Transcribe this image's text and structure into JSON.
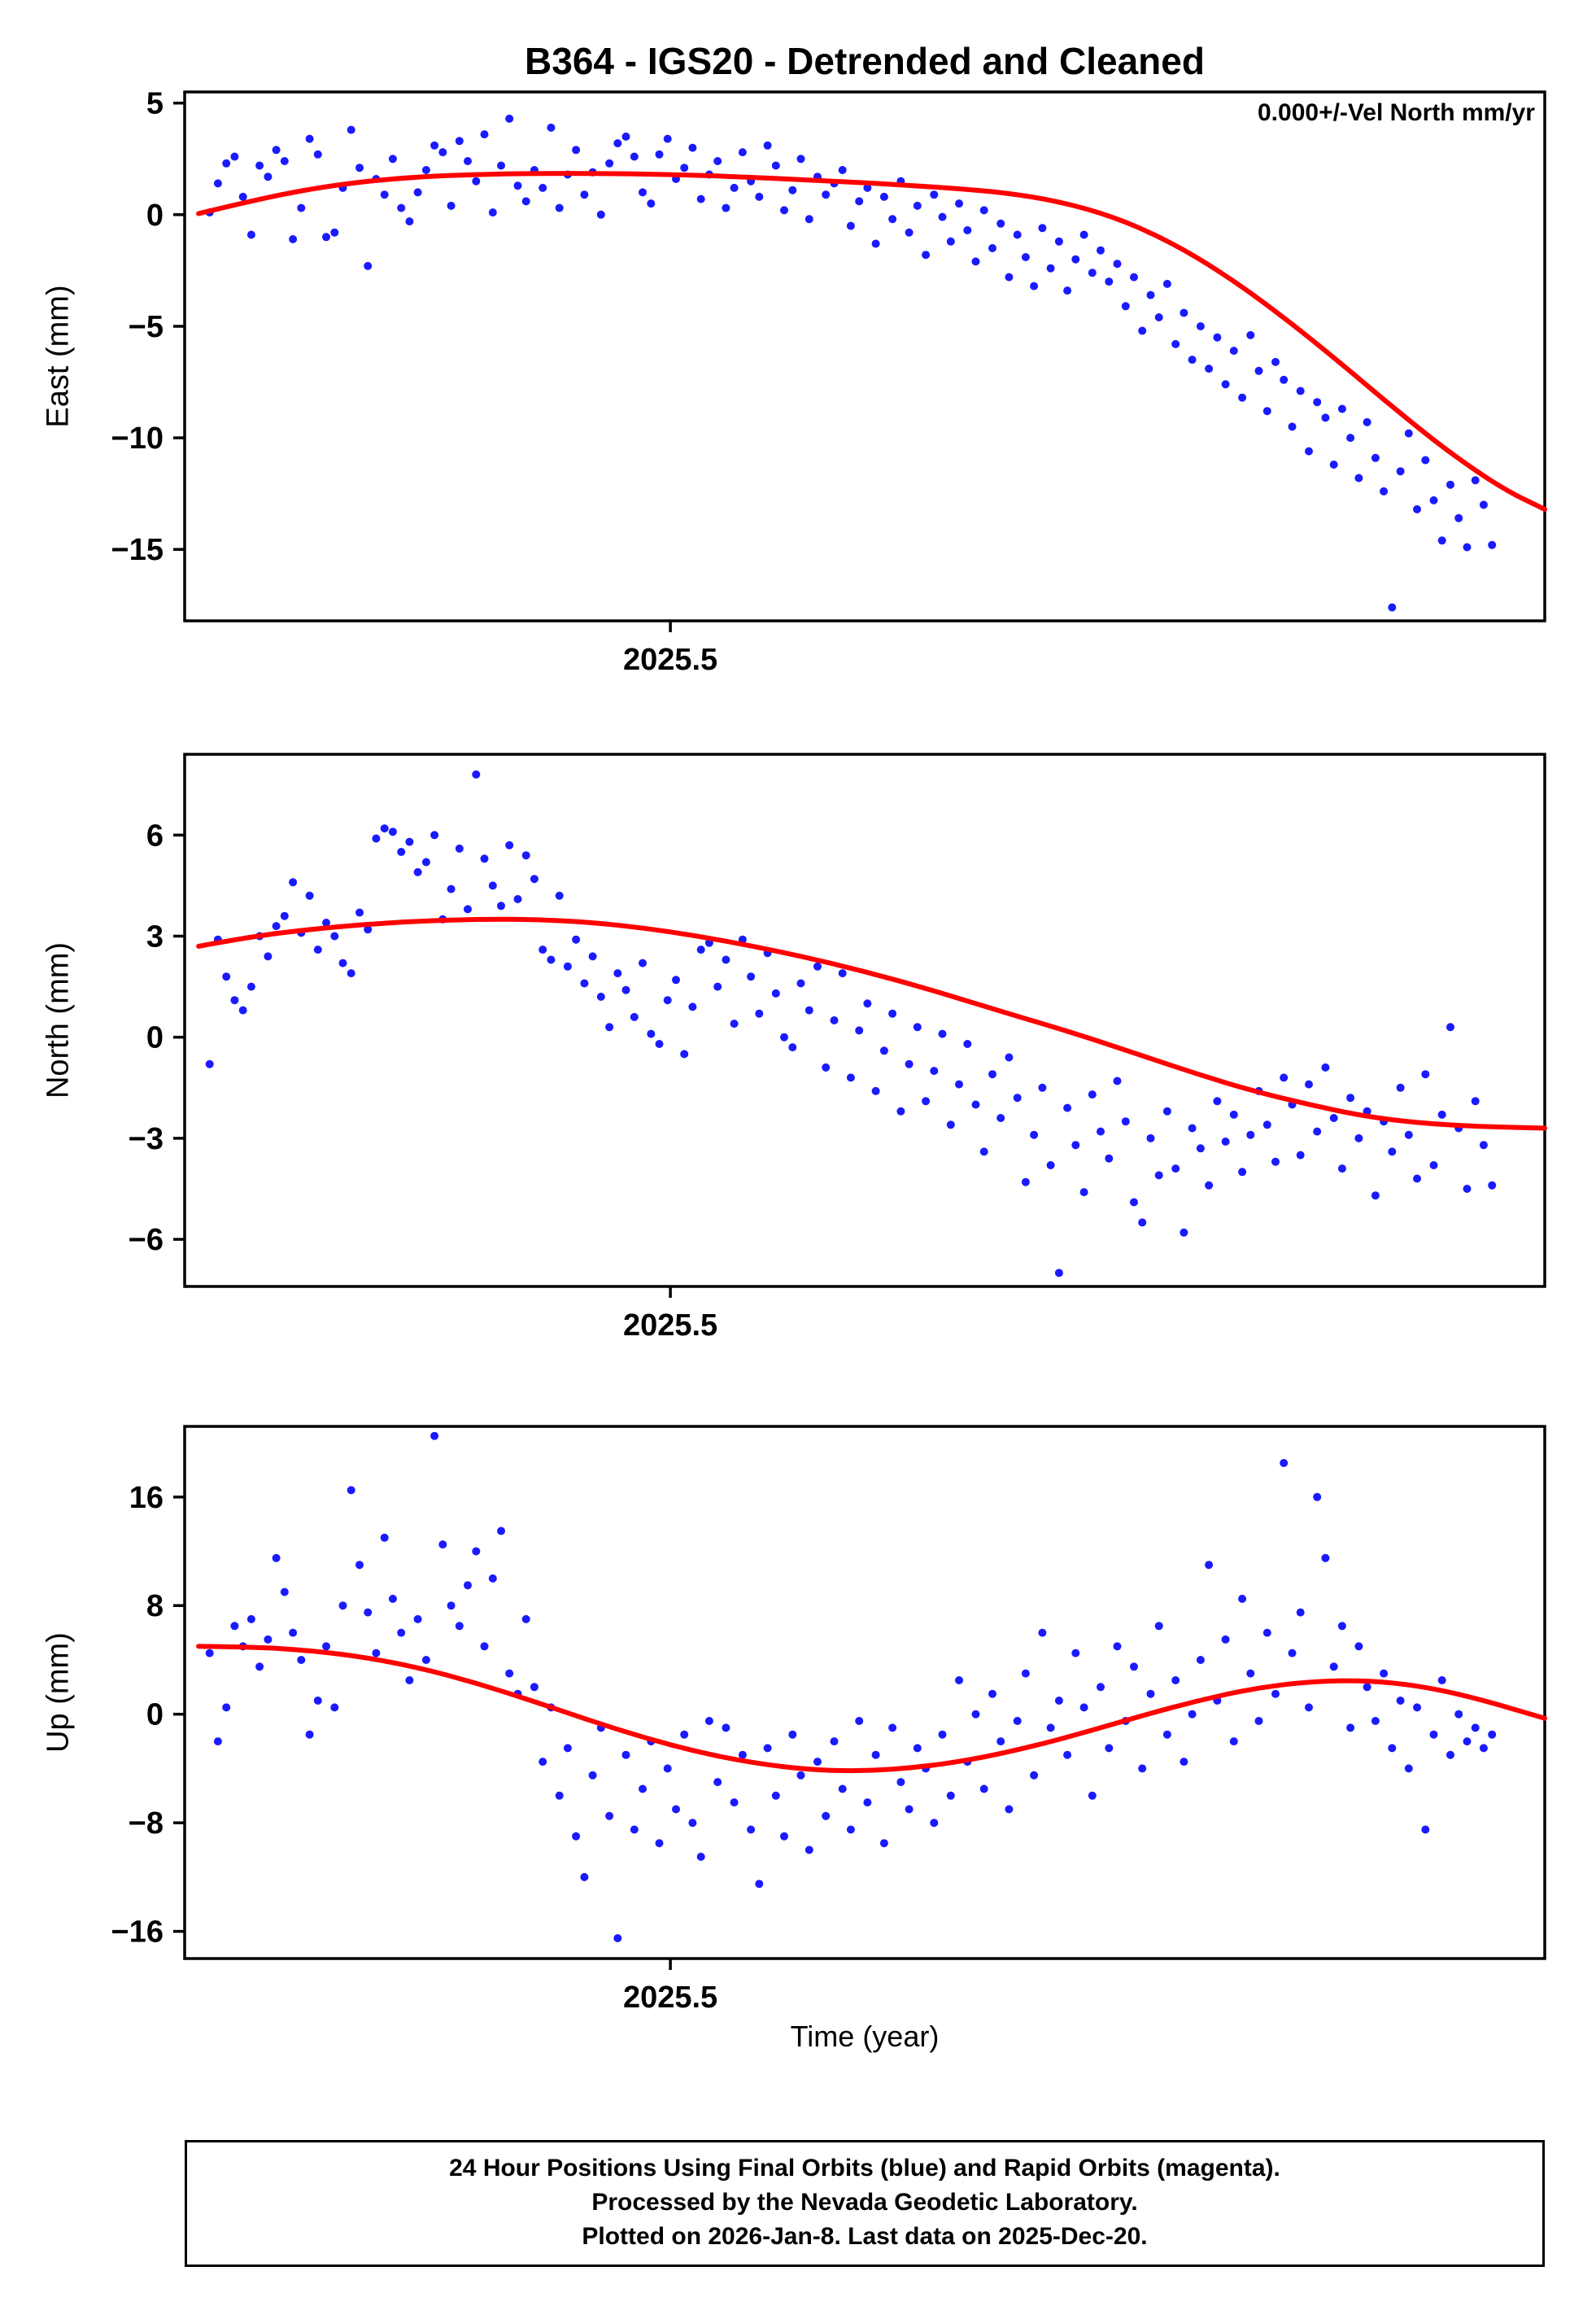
{
  "title": "B364 - IGS20 - Detrended and Cleaned",
  "annotation": "0.000+/-Vel North mm/yr",
  "xlabel": "Time (year)",
  "footer": {
    "line1": "24 Hour Positions Using Final Orbits (blue) and Rapid Orbits (magenta).",
    "line2": "Processed by the Nevada Geodetic Laboratory.",
    "line3": "Plotted on 2026-Jan-8. Last data on 2025-Dec-20."
  },
  "colors": {
    "points": "#1a1aff",
    "trend": "#ff0000",
    "frame": "#000000"
  },
  "chart_data": [
    {
      "type": "scatter",
      "ylabel": "East (mm)",
      "xlabel": "Time (year)",
      "ylim": [
        -18.2,
        5.5
      ],
      "xlim": [
        2025.15,
        2026.13
      ],
      "y_ticks": [
        5,
        0,
        -5,
        -10,
        -15
      ],
      "x_ticks": [
        {
          "value": 2025.5,
          "label": "2025.5"
        }
      ],
      "series": [
        {
          "name": "daily-position-final-orbits",
          "style": "points",
          "x_start": 2025.168,
          "x_step": 0.006,
          "y": [
            0.1,
            1.4,
            2.3,
            2.6,
            0.8,
            -0.9,
            2.2,
            1.7,
            2.9,
            2.4,
            -1.1,
            0.3,
            3.4,
            2.7,
            -1.0,
            -0.8,
            1.2,
            3.8,
            2.1,
            -2.3,
            1.6,
            0.9,
            2.5,
            0.3,
            -0.3,
            1.0,
            2.0,
            3.1,
            2.8,
            0.4,
            3.3,
            2.4,
            1.5,
            3.6,
            0.1,
            2.2,
            4.3,
            1.3,
            0.6,
            2.0,
            1.2,
            3.9,
            0.3,
            1.8,
            2.9,
            0.9,
            1.9,
            0.0,
            2.3,
            3.2,
            3.5,
            2.6,
            1.0,
            0.5,
            2.7,
            3.4,
            1.6,
            2.1,
            3.0,
            0.7,
            1.8,
            2.4,
            0.3,
            1.2,
            2.8,
            1.5,
            0.8,
            3.1,
            2.2,
            0.2,
            1.1,
            2.5,
            -0.2,
            1.7,
            0.9,
            1.4,
            2.0,
            -0.5,
            0.6,
            1.2,
            -1.3,
            0.8,
            -0.2,
            1.5,
            -0.8,
            0.4,
            -1.8,
            0.9,
            -0.1,
            -1.2,
            0.5,
            -0.7,
            -2.1,
            0.2,
            -1.5,
            -0.4,
            -2.8,
            -0.9,
            -1.9,
            -3.2,
            -0.6,
            -2.4,
            -1.2,
            -3.4,
            -2.0,
            -0.9,
            -2.6,
            -1.6,
            -3.0,
            -2.2,
            -4.1,
            -2.8,
            -5.2,
            -3.6,
            -4.6,
            -3.1,
            -5.8,
            -4.4,
            -6.5,
            -5.0,
            -6.9,
            -5.5,
            -7.6,
            -6.1,
            -8.2,
            -5.4,
            -7.0,
            -8.8,
            -6.6,
            -7.4,
            -9.5,
            -7.9,
            -10.6,
            -8.4,
            -9.1,
            -11.2,
            -8.7,
            -10.0,
            -11.8,
            -9.3,
            -10.9,
            -12.4,
            -17.6,
            -11.5,
            -9.8,
            -13.2,
            -11.0,
            -12.8,
            -14.6,
            -12.1,
            -13.6,
            -14.9,
            -11.9,
            -13.0,
            -14.8
          ]
        },
        {
          "name": "model-fit",
          "style": "line",
          "points": [
            [
              2025.16,
              0.05
            ],
            [
              2025.2,
              0.65
            ],
            [
              2025.24,
              1.15
            ],
            [
              2025.28,
              1.5
            ],
            [
              2025.32,
              1.7
            ],
            [
              2025.36,
              1.8
            ],
            [
              2025.4,
              1.85
            ],
            [
              2025.45,
              1.85
            ],
            [
              2025.5,
              1.8
            ],
            [
              2025.55,
              1.7
            ],
            [
              2025.6,
              1.55
            ],
            [
              2025.65,
              1.4
            ],
            [
              2025.7,
              1.2
            ],
            [
              2025.74,
              1.0
            ],
            [
              2025.78,
              0.6
            ],
            [
              2025.82,
              -0.1
            ],
            [
              2025.86,
              -1.2
            ],
            [
              2025.9,
              -2.7
            ],
            [
              2025.94,
              -4.5
            ],
            [
              2025.98,
              -6.5
            ],
            [
              2026.02,
              -8.6
            ],
            [
              2026.06,
              -10.6
            ],
            [
              2026.1,
              -12.3
            ],
            [
              2026.13,
              -13.2
            ]
          ]
        }
      ]
    },
    {
      "type": "scatter",
      "ylabel": "North (mm)",
      "xlabel": "Time (year)",
      "ylim": [
        -7.4,
        8.4
      ],
      "xlim": [
        2025.15,
        2026.13
      ],
      "y_ticks": [
        6,
        3,
        0,
        -3,
        -6
      ],
      "x_ticks": [
        {
          "value": 2025.5,
          "label": "2025.5"
        }
      ],
      "series": [
        {
          "name": "daily-position-final-orbits",
          "style": "points",
          "x_start": 2025.168,
          "x_step": 0.006,
          "y": [
            -0.8,
            2.9,
            1.8,
            1.1,
            0.8,
            1.5,
            3.0,
            2.4,
            3.3,
            3.6,
            4.6,
            3.1,
            4.2,
            2.6,
            3.4,
            3.0,
            2.2,
            1.9,
            3.7,
            3.2,
            5.9,
            6.2,
            6.1,
            5.5,
            5.8,
            4.9,
            5.2,
            6.0,
            3.5,
            4.4,
            5.6,
            3.8,
            7.8,
            5.3,
            4.5,
            3.9,
            5.7,
            4.1,
            5.4,
            4.7,
            2.6,
            2.3,
            4.2,
            2.1,
            2.9,
            1.6,
            2.4,
            1.2,
            0.3,
            1.9,
            1.4,
            0.6,
            2.2,
            0.1,
            -0.2,
            1.1,
            1.7,
            -0.5,
            0.9,
            2.6,
            2.8,
            1.5,
            2.3,
            0.4,
            2.9,
            1.8,
            0.7,
            2.5,
            1.3,
            0.0,
            -0.3,
            1.6,
            0.8,
            2.1,
            -0.9,
            0.5,
            1.9,
            -1.2,
            0.2,
            1.0,
            -1.6,
            -0.4,
            0.7,
            -2.2,
            -0.8,
            0.3,
            -1.9,
            -1.0,
            0.1,
            -2.6,
            -1.4,
            -0.2,
            -2.0,
            -3.4,
            -1.1,
            -2.4,
            -0.6,
            -1.8,
            -4.3,
            -2.9,
            -1.5,
            -3.8,
            -7.0,
            -2.1,
            -3.2,
            -4.6,
            -1.7,
            -2.8,
            -3.6,
            -1.3,
            -2.5,
            -4.9,
            -5.5,
            -3.0,
            -4.1,
            -2.2,
            -3.9,
            -5.8,
            -2.7,
            -3.3,
            -4.4,
            -1.9,
            -3.1,
            -2.3,
            -4.0,
            -2.9,
            -1.6,
            -2.6,
            -3.7,
            -1.2,
            -2.0,
            -3.5,
            -1.4,
            -2.8,
            -0.9,
            -2.4,
            -3.9,
            -1.8,
            -3.0,
            -2.2,
            -4.7,
            -2.5,
            -3.4,
            -1.5,
            -2.9,
            -4.2,
            -1.1,
            -3.8,
            -2.3,
            0.3,
            -2.7,
            -4.5,
            -1.9,
            -3.2,
            -4.4
          ]
        },
        {
          "name": "model-fit",
          "style": "line",
          "points": [
            [
              2025.16,
              2.7
            ],
            [
              2025.2,
              3.0
            ],
            [
              2025.24,
              3.2
            ],
            [
              2025.28,
              3.35
            ],
            [
              2025.32,
              3.45
            ],
            [
              2025.36,
              3.5
            ],
            [
              2025.4,
              3.5
            ],
            [
              2025.44,
              3.42
            ],
            [
              2025.48,
              3.25
            ],
            [
              2025.52,
              3.0
            ],
            [
              2025.56,
              2.7
            ],
            [
              2025.6,
              2.35
            ],
            [
              2025.64,
              1.95
            ],
            [
              2025.68,
              1.5
            ],
            [
              2025.72,
              1.0
            ],
            [
              2025.76,
              0.5
            ],
            [
              2025.8,
              0.0
            ],
            [
              2025.84,
              -0.55
            ],
            [
              2025.88,
              -1.1
            ],
            [
              2025.92,
              -1.6
            ],
            [
              2025.96,
              -2.0
            ],
            [
              2026.0,
              -2.35
            ],
            [
              2026.04,
              -2.55
            ],
            [
              2026.08,
              -2.65
            ],
            [
              2026.13,
              -2.7
            ]
          ]
        }
      ]
    },
    {
      "type": "scatter",
      "ylabel": "Up (mm)",
      "xlabel": "Time (year)",
      "ylim": [
        -18.0,
        21.2
      ],
      "xlim": [
        2025.15,
        2026.13
      ],
      "y_ticks": [
        16,
        8,
        0,
        -8,
        -16
      ],
      "x_ticks": [
        {
          "value": 2025.5,
          "label": "2025.5"
        }
      ],
      "series": [
        {
          "name": "daily-position-final-orbits",
          "style": "points",
          "x_start": 2025.168,
          "x_step": 0.006,
          "y": [
            4.5,
            -2.0,
            0.5,
            6.5,
            5.0,
            7.0,
            3.5,
            5.5,
            11.5,
            9.0,
            6.0,
            4.0,
            -1.5,
            1.0,
            5.0,
            0.5,
            8.0,
            16.5,
            11.0,
            7.5,
            4.5,
            13.0,
            8.5,
            6.0,
            2.5,
            7.0,
            4.0,
            20.5,
            12.5,
            8.0,
            6.5,
            9.5,
            12.0,
            5.0,
            10.0,
            13.5,
            3.0,
            1.5,
            7.0,
            2.0,
            -3.5,
            0.5,
            -6.0,
            -2.5,
            -9.0,
            -12.0,
            -4.5,
            -1.0,
            -7.5,
            -16.5,
            -3.0,
            -8.5,
            -5.5,
            -2.0,
            -9.5,
            -4.0,
            -7.0,
            -1.5,
            -8.0,
            -10.5,
            -0.5,
            -5.0,
            -1.0,
            -6.5,
            -3.0,
            -8.5,
            -12.5,
            -2.5,
            -6.0,
            -9.0,
            -1.5,
            -4.5,
            -10.0,
            -3.5,
            -7.5,
            -2.0,
            -5.5,
            -8.5,
            -0.5,
            -6.5,
            -3.0,
            -9.5,
            -1.0,
            -5.0,
            -7.0,
            -2.5,
            -4.0,
            -8.0,
            -1.5,
            -6.0,
            2.5,
            -3.5,
            0.0,
            -5.5,
            1.5,
            -2.0,
            -7.0,
            -0.5,
            3.0,
            -4.5,
            6.0,
            -1.0,
            1.0,
            -3.0,
            4.5,
            0.5,
            -6.0,
            2.0,
            -2.5,
            5.0,
            -0.5,
            3.5,
            -4.0,
            1.5,
            6.5,
            -1.5,
            2.5,
            -3.5,
            0.0,
            4.0,
            11.0,
            1.0,
            5.5,
            -2.0,
            8.5,
            3.0,
            -0.5,
            6.0,
            1.5,
            18.5,
            4.5,
            7.5,
            0.5,
            16.0,
            11.5,
            3.5,
            6.5,
            -1.0,
            5.0,
            2.0,
            -0.5,
            3.0,
            -2.5,
            1.0,
            -4.0,
            0.5,
            -8.5,
            -1.5,
            2.5,
            -3.0,
            0.0,
            -2.0,
            -1.0,
            -2.5,
            -1.5
          ]
        },
        {
          "name": "model-fit",
          "style": "line",
          "points": [
            [
              2025.16,
              5.0
            ],
            [
              2025.2,
              4.95
            ],
            [
              2025.24,
              4.7
            ],
            [
              2025.28,
              4.2
            ],
            [
              2025.32,
              3.4
            ],
            [
              2025.36,
              2.3
            ],
            [
              2025.4,
              1.0
            ],
            [
              2025.44,
              -0.4
            ],
            [
              2025.48,
              -1.7
            ],
            [
              2025.52,
              -2.8
            ],
            [
              2025.56,
              -3.6
            ],
            [
              2025.6,
              -4.1
            ],
            [
              2025.64,
              -4.2
            ],
            [
              2025.68,
              -3.9
            ],
            [
              2025.72,
              -3.3
            ],
            [
              2025.76,
              -2.4
            ],
            [
              2025.8,
              -1.3
            ],
            [
              2025.84,
              -0.1
            ],
            [
              2025.88,
              1.0
            ],
            [
              2025.92,
              1.9
            ],
            [
              2025.96,
              2.4
            ],
            [
              2026.0,
              2.5
            ],
            [
              2026.04,
              2.1
            ],
            [
              2026.08,
              1.2
            ],
            [
              2026.13,
              -0.3
            ]
          ]
        }
      ]
    }
  ]
}
